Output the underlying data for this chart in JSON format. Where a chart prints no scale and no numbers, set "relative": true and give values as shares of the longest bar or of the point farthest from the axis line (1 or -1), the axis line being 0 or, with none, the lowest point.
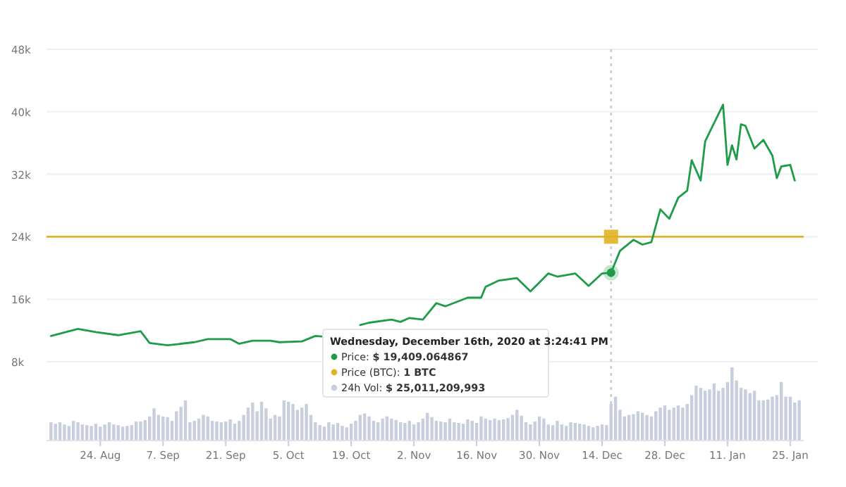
{
  "chart_data": [
    {
      "type": "line",
      "x": [
        "2020-08-13",
        "2020-08-19",
        "2020-08-23",
        "2020-08-28",
        "2020-09-02",
        "2020-09-04",
        "2020-09-08",
        "2020-09-14",
        "2020-09-17",
        "2020-09-22",
        "2020-09-24",
        "2020-09-27",
        "2020-10-01",
        "2020-10-03",
        "2020-10-08",
        "2020-10-11",
        "2020-10-13",
        "2020-10-17",
        "2020-10-21",
        "2020-10-23",
        "2020-10-28",
        "2020-10-30",
        "2020-11-01",
        "2020-11-04",
        "2020-11-07",
        "2020-11-09",
        "2020-11-14",
        "2020-11-17",
        "2020-11-18",
        "2020-11-21",
        "2020-11-25",
        "2020-11-28",
        "2020-12-02",
        "2020-12-04",
        "2020-12-08",
        "2020-12-11",
        "2020-12-14",
        "2020-12-16",
        "2020-12-18",
        "2020-12-21",
        "2020-12-23",
        "2020-12-25",
        "2020-12-27",
        "2020-12-29",
        "2020-12-31",
        "2021-01-02",
        "2021-01-03",
        "2021-01-05",
        "2021-01-06",
        "2021-01-10",
        "2021-01-11",
        "2021-01-12",
        "2021-01-13",
        "2021-01-14",
        "2021-01-15",
        "2021-01-17",
        "2021-01-19",
        "2021-01-21",
        "2021-01-22",
        "2021-01-23",
        "2021-01-25",
        "2021-01-26"
      ],
      "series": [
        {
          "color": "#1e9c48",
          "values": [
            11300,
            12200,
            11800,
            11400,
            11900,
            10400,
            10100,
            10500,
            10900,
            10900,
            10300,
            10700,
            10700,
            10500,
            10600,
            11300,
            11200,
            null,
            12700,
            13000,
            13400,
            13100,
            13600,
            13400,
            15500,
            15100,
            16200,
            16200,
            17600,
            18400,
            18700,
            17000,
            19300,
            18900,
            19300,
            17700,
            19300,
            19400,
            22200,
            23600,
            23000,
            23300,
            27500,
            26300,
            29000,
            29900,
            33800,
            31200,
            36200,
            40900,
            33200,
            35700,
            33900,
            38400,
            38200,
            35300,
            36400,
            34400,
            31500,
            33000,
            33200,
            31200
          ]
        }
      ],
      "xlim": [
        "2020-08-12",
        "2021-01-28"
      ],
      "ylim": [
        8000,
        48000
      ],
      "yticks": [
        {
          "value": 8000,
          "label": "8k"
        },
        {
          "value": 16000,
          "label": "16k"
        },
        {
          "value": 24000,
          "label": "24k"
        },
        {
          "value": 32000,
          "label": "32k"
        },
        {
          "value": 40000,
          "label": "40k"
        },
        {
          "value": 48000,
          "label": "48k"
        }
      ],
      "tick_labels": "y",
      "grid": "y",
      "line_style": "solid",
      "ref_lines": [
        {
          "axis": "y",
          "value": 24000,
          "color": "#e0b324",
          "line_style": "solid"
        },
        {
          "axis": "x",
          "value": "2020-12-16",
          "color": "#c4c8d0",
          "line_style": "dotted"
        }
      ],
      "annotations": [
        "Wednesday, December 16th, 2020 at 3:24:41 PM",
        "Price: $ 19,409.064867",
        "Price (BTC): 1 BTC",
        "24h Vol: $ 25,011,209,993"
      ]
    },
    {
      "type": "bar",
      "relative": true,
      "color": "#c8cedd",
      "xlim": [
        "2020-08-12",
        "2021-01-28"
      ],
      "xticks": [
        {
          "value": "2020-08-24",
          "label": "24. Aug"
        },
        {
          "value": "2020-09-07",
          "label": "7. Sep"
        },
        {
          "value": "2020-09-21",
          "label": "21. Sep"
        },
        {
          "value": "2020-10-05",
          "label": "5. Oct"
        },
        {
          "value": "2020-10-19",
          "label": "19. Oct"
        },
        {
          "value": "2020-11-02",
          "label": "2. Nov"
        },
        {
          "value": "2020-11-16",
          "label": "16. Nov"
        },
        {
          "value": "2020-11-30",
          "label": "30. Nov"
        },
        {
          "value": "2020-12-14",
          "label": "14. Dec"
        },
        {
          "value": "2020-12-28",
          "label": "28. Dec"
        },
        {
          "value": "2021-01-11",
          "label": "11. Jan"
        },
        {
          "value": "2021-01-25",
          "label": "25. Jan"
        }
      ],
      "x": [
        "2020-08-13",
        "2020-08-14",
        "2020-08-15",
        "2020-08-16",
        "2020-08-17",
        "2020-08-18",
        "2020-08-19",
        "2020-08-20",
        "2020-08-21",
        "2020-08-22",
        "2020-08-23",
        "2020-08-24",
        "2020-08-25",
        "2020-08-26",
        "2020-08-27",
        "2020-08-28",
        "2020-08-29",
        "2020-08-30",
        "2020-08-31",
        "2020-09-01",
        "2020-09-02",
        "2020-09-03",
        "2020-09-04",
        "2020-09-05",
        "2020-09-06",
        "2020-09-07",
        "2020-09-08",
        "2020-09-09",
        "2020-09-10",
        "2020-09-11",
        "2020-09-12",
        "2020-09-13",
        "2020-09-14",
        "2020-09-15",
        "2020-09-16",
        "2020-09-17",
        "2020-09-18",
        "2020-09-19",
        "2020-09-20",
        "2020-09-21",
        "2020-09-22",
        "2020-09-23",
        "2020-09-24",
        "2020-09-25",
        "2020-09-26",
        "2020-09-27",
        "2020-09-28",
        "2020-09-29",
        "2020-09-30",
        "2020-10-01",
        "2020-10-02",
        "2020-10-03",
        "2020-10-04",
        "2020-10-05",
        "2020-10-06",
        "2020-10-07",
        "2020-10-08",
        "2020-10-09",
        "2020-10-10",
        "2020-10-11",
        "2020-10-12",
        "2020-10-13",
        "2020-10-14",
        "2020-10-15",
        "2020-10-16",
        "2020-10-17",
        "2020-10-18",
        "2020-10-19",
        "2020-10-20",
        "2020-10-21",
        "2020-10-22",
        "2020-10-23",
        "2020-10-24",
        "2020-10-25",
        "2020-10-26",
        "2020-10-27",
        "2020-10-28",
        "2020-10-29",
        "2020-10-30",
        "2020-10-31",
        "2020-11-01",
        "2020-11-02",
        "2020-11-03",
        "2020-11-04",
        "2020-11-05",
        "2020-11-06",
        "2020-11-07",
        "2020-11-08",
        "2020-11-09",
        "2020-11-10",
        "2020-11-11",
        "2020-11-12",
        "2020-11-13",
        "2020-11-14",
        "2020-11-15",
        "2020-11-16",
        "2020-11-17",
        "2020-11-18",
        "2020-11-19",
        "2020-11-20",
        "2020-11-21",
        "2020-11-22",
        "2020-11-23",
        "2020-11-24",
        "2020-11-25",
        "2020-11-26",
        "2020-11-27",
        "2020-11-28",
        "2020-11-29",
        "2020-11-30",
        "2020-12-01",
        "2020-12-02",
        "2020-12-03",
        "2020-12-04",
        "2020-12-05",
        "2020-12-06",
        "2020-12-07",
        "2020-12-08",
        "2020-12-09",
        "2020-12-10",
        "2020-12-11",
        "2020-12-12",
        "2020-12-13",
        "2020-12-14",
        "2020-12-15",
        "2020-12-16",
        "2020-12-17",
        "2020-12-18",
        "2020-12-19",
        "2020-12-20",
        "2020-12-21",
        "2020-12-22",
        "2020-12-23",
        "2020-12-24",
        "2020-12-25",
        "2020-12-26",
        "2020-12-27",
        "2020-12-28",
        "2020-12-29",
        "2020-12-30",
        "2020-12-31",
        "2021-01-01",
        "2021-01-02",
        "2021-01-03",
        "2021-01-04",
        "2021-01-05",
        "2021-01-06",
        "2021-01-07",
        "2021-01-08",
        "2021-01-09",
        "2021-01-10",
        "2021-01-11",
        "2021-01-12",
        "2021-01-13",
        "2021-01-14",
        "2021-01-15",
        "2021-01-16",
        "2021-01-17",
        "2021-01-18",
        "2021-01-19",
        "2021-01-20",
        "2021-01-21",
        "2021-01-22",
        "2021-01-23",
        "2021-01-24",
        "2021-01-25",
        "2021-01-26",
        "2021-01-27"
      ],
      "values": [
        0.25,
        0.23,
        0.25,
        0.22,
        0.2,
        0.27,
        0.25,
        0.22,
        0.21,
        0.2,
        0.23,
        0.19,
        0.22,
        0.25,
        0.22,
        0.21,
        0.19,
        0.2,
        0.21,
        0.26,
        0.26,
        0.28,
        0.33,
        0.44,
        0.35,
        0.33,
        0.32,
        0.27,
        0.4,
        0.46,
        0.55,
        0.25,
        0.27,
        0.3,
        0.35,
        0.33,
        0.27,
        0.26,
        0.25,
        0.26,
        0.29,
        0.23,
        0.27,
        0.35,
        0.45,
        0.52,
        0.4,
        0.53,
        0.44,
        0.3,
        0.35,
        0.33,
        0.55,
        0.53,
        0.5,
        0.42,
        0.45,
        0.5,
        0.35,
        0.25,
        0.21,
        0.19,
        0.25,
        0.22,
        0.24,
        0.2,
        0.18,
        0.23,
        0.27,
        0.35,
        0.37,
        0.33,
        0.27,
        0.25,
        0.3,
        0.33,
        0.3,
        0.28,
        0.25,
        0.24,
        0.27,
        0.22,
        0.25,
        0.3,
        0.38,
        0.32,
        0.27,
        0.26,
        0.25,
        0.3,
        0.25,
        0.24,
        0.23,
        0.29,
        0.27,
        0.24,
        0.33,
        0.3,
        0.28,
        0.3,
        0.28,
        0.29,
        0.31,
        0.35,
        0.42,
        0.34,
        0.25,
        0.22,
        0.26,
        0.33,
        0.3,
        0.22,
        0.21,
        0.27,
        0.22,
        0.2,
        0.25,
        0.24,
        0.23,
        0.22,
        0.2,
        0.18,
        0.2,
        0.22,
        0.21,
        0.5,
        0.6,
        0.42,
        0.33,
        0.35,
        0.36,
        0.4,
        0.38,
        0.35,
        0.33,
        0.4,
        0.45,
        0.48,
        0.42,
        0.45,
        0.48,
        0.45,
        0.5,
        0.62,
        0.75,
        0.72,
        0.68,
        0.7,
        0.78,
        0.68,
        0.72,
        0.8,
        1,
        0.82,
        0.72,
        0.7,
        0.65,
        0.68,
        0.55,
        0.55,
        0.56,
        0.6,
        0.62,
        0.8,
        0.6,
        0.6,
        0.52,
        0.55
      ]
    }
  ]
}
